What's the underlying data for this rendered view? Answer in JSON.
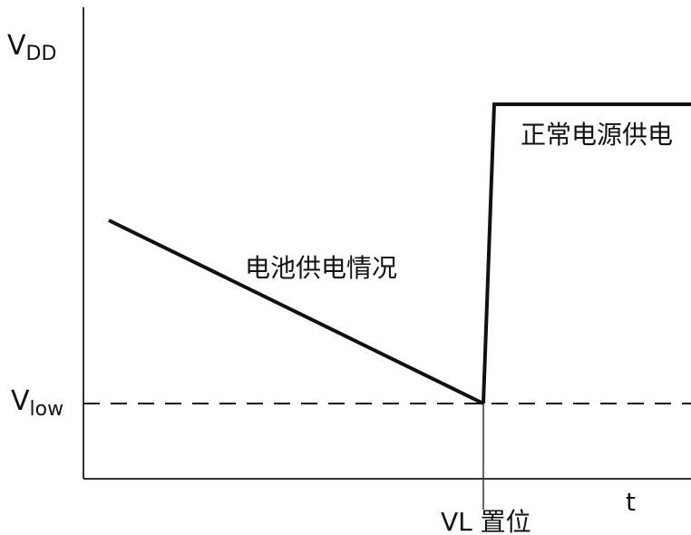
{
  "axis": {
    "y_top_label_main": "V",
    "y_top_label_sub": "DD",
    "y_low_label_main": "V",
    "y_low_label_sub": "low",
    "x_label": "t"
  },
  "annotations": {
    "battery_supply": "电池供电情况",
    "normal_supply": "正常电源供电",
    "vl_set": "VL 置位"
  }
}
